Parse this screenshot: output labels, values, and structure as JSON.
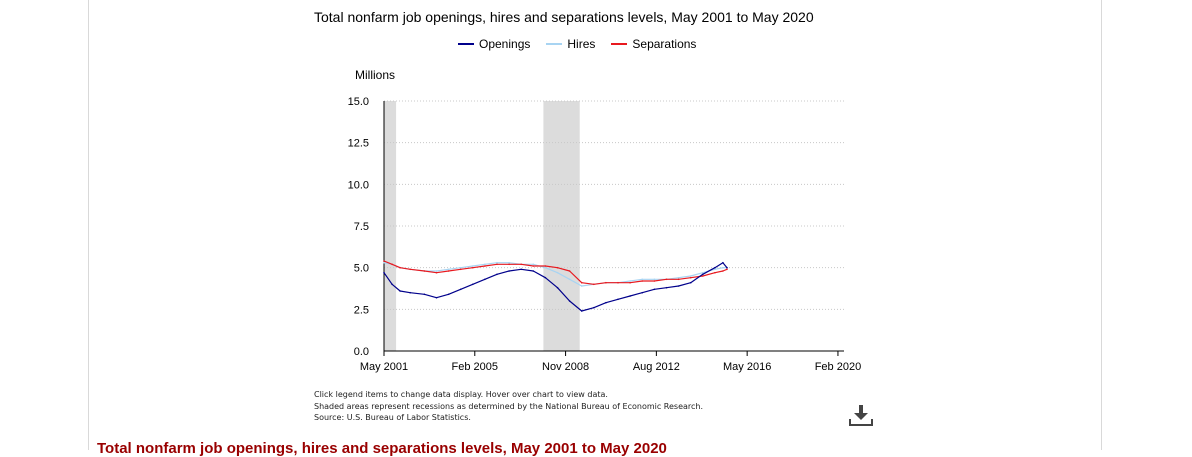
{
  "chart_data": {
    "type": "line",
    "title": "Total nonfarm job openings, hires and separations levels, May 2001 to May 2020",
    "ylabel": "Millions",
    "xlabel": "",
    "ylim": [
      0,
      15
    ],
    "xlim": [
      "2001-05",
      "2020-05"
    ],
    "y_ticks": [
      "0.0",
      "2.5",
      "5.0",
      "7.5",
      "10.0",
      "12.5",
      "15.0"
    ],
    "x_ticks": [
      {
        "date": "2001-05",
        "label": "May 2001"
      },
      {
        "date": "2005-02",
        "label": "Feb 2005"
      },
      {
        "date": "2008-11",
        "label": "Nov 2008"
      },
      {
        "date": "2012-08",
        "label": "Aug 2012"
      },
      {
        "date": "2016-05",
        "label": "May 2016"
      },
      {
        "date": "2020-02",
        "label": "Feb 2020"
      }
    ],
    "grid": true,
    "legend_position": "top",
    "recessions": [
      {
        "start": "2001-03",
        "end": "2001-11"
      },
      {
        "start": "2007-12",
        "end": "2009-06"
      }
    ],
    "series": [
      {
        "name": "Openings",
        "color": "#00008b",
        "points": [
          [
            "2001-05",
            4.7
          ],
          [
            "2001-09",
            4.0
          ],
          [
            "2002-01",
            3.6
          ],
          [
            "2002-06",
            3.5
          ],
          [
            "2003-01",
            3.4
          ],
          [
            "2003-07",
            3.2
          ],
          [
            "2004-01",
            3.4
          ],
          [
            "2004-07",
            3.7
          ],
          [
            "2005-01",
            4.0
          ],
          [
            "2005-07",
            4.3
          ],
          [
            "2006-01",
            4.6
          ],
          [
            "2006-07",
            4.8
          ],
          [
            "2007-01",
            4.9
          ],
          [
            "2007-07",
            4.8
          ],
          [
            "2008-01",
            4.4
          ],
          [
            "2008-07",
            3.8
          ],
          [
            "2009-01",
            3.0
          ],
          [
            "2009-07",
            2.4
          ],
          [
            "2010-01",
            2.6
          ],
          [
            "2010-07",
            2.9
          ],
          [
            "2011-01",
            3.1
          ],
          [
            "2011-07",
            3.3
          ],
          [
            "2012-01",
            3.5
          ],
          [
            "2012-07",
            3.7
          ],
          [
            "2013-01",
            3.8
          ],
          [
            "2013-07",
            3.9
          ],
          [
            "2014-01",
            4.1
          ],
          [
            "2014-07",
            4.6
          ],
          [
            "2015-01",
            5.0
          ],
          [
            "2015-05",
            5.3
          ],
          [
            "2015-07",
            5.0
          ]
        ]
      },
      {
        "name": "Hires",
        "color": "#a8d4f2",
        "points": [
          [
            "2001-05",
            5.3
          ],
          [
            "2001-09",
            5.2
          ],
          [
            "2002-01",
            5.0
          ],
          [
            "2002-06",
            4.9
          ],
          [
            "2003-01",
            4.8
          ],
          [
            "2003-07",
            4.8
          ],
          [
            "2004-01",
            4.9
          ],
          [
            "2004-07",
            5.0
          ],
          [
            "2005-01",
            5.1
          ],
          [
            "2005-07",
            5.2
          ],
          [
            "2006-01",
            5.3
          ],
          [
            "2006-07",
            5.3
          ],
          [
            "2007-01",
            5.2
          ],
          [
            "2007-07",
            5.2
          ],
          [
            "2008-01",
            5.0
          ],
          [
            "2008-07",
            4.7
          ],
          [
            "2009-01",
            4.3
          ],
          [
            "2009-07",
            3.9
          ],
          [
            "2010-01",
            4.0
          ],
          [
            "2010-07",
            4.1
          ],
          [
            "2011-01",
            4.1
          ],
          [
            "2011-07",
            4.2
          ],
          [
            "2012-01",
            4.3
          ],
          [
            "2012-07",
            4.3
          ],
          [
            "2013-01",
            4.3
          ],
          [
            "2013-07",
            4.4
          ],
          [
            "2014-01",
            4.5
          ],
          [
            "2014-07",
            4.7
          ],
          [
            "2015-01",
            4.9
          ],
          [
            "2015-05",
            5.0
          ],
          [
            "2015-07",
            5.0
          ]
        ]
      },
      {
        "name": "Separations",
        "color": "#e8191f",
        "points": [
          [
            "2001-05",
            5.4
          ],
          [
            "2001-09",
            5.2
          ],
          [
            "2002-01",
            5.0
          ],
          [
            "2002-06",
            4.9
          ],
          [
            "2003-01",
            4.8
          ],
          [
            "2003-07",
            4.7
          ],
          [
            "2004-01",
            4.8
          ],
          [
            "2004-07",
            4.9
          ],
          [
            "2005-01",
            5.0
          ],
          [
            "2005-07",
            5.1
          ],
          [
            "2006-01",
            5.2
          ],
          [
            "2006-07",
            5.2
          ],
          [
            "2007-01",
            5.2
          ],
          [
            "2007-07",
            5.1
          ],
          [
            "2008-01",
            5.1
          ],
          [
            "2008-07",
            5.0
          ],
          [
            "2009-01",
            4.8
          ],
          [
            "2009-07",
            4.1
          ],
          [
            "2010-01",
            4.0
          ],
          [
            "2010-07",
            4.1
          ],
          [
            "2011-01",
            4.1
          ],
          [
            "2011-07",
            4.1
          ],
          [
            "2012-01",
            4.2
          ],
          [
            "2012-07",
            4.2
          ],
          [
            "2013-01",
            4.3
          ],
          [
            "2013-07",
            4.3
          ],
          [
            "2014-01",
            4.4
          ],
          [
            "2014-07",
            4.5
          ],
          [
            "2015-01",
            4.7
          ],
          [
            "2015-05",
            4.8
          ],
          [
            "2015-07",
            4.9
          ]
        ]
      }
    ]
  },
  "notes": [
    "Click legend items to change data display. Hover over chart to view data.",
    "Shaded areas represent recessions as determined by the National Bureau of Economic Research.",
    "Source: U.S. Bureau of Labor Statistics."
  ],
  "download": {
    "icon": "download-icon"
  },
  "section_title": "Total nonfarm job openings, hires and separations levels, May 2001 to May 2020"
}
